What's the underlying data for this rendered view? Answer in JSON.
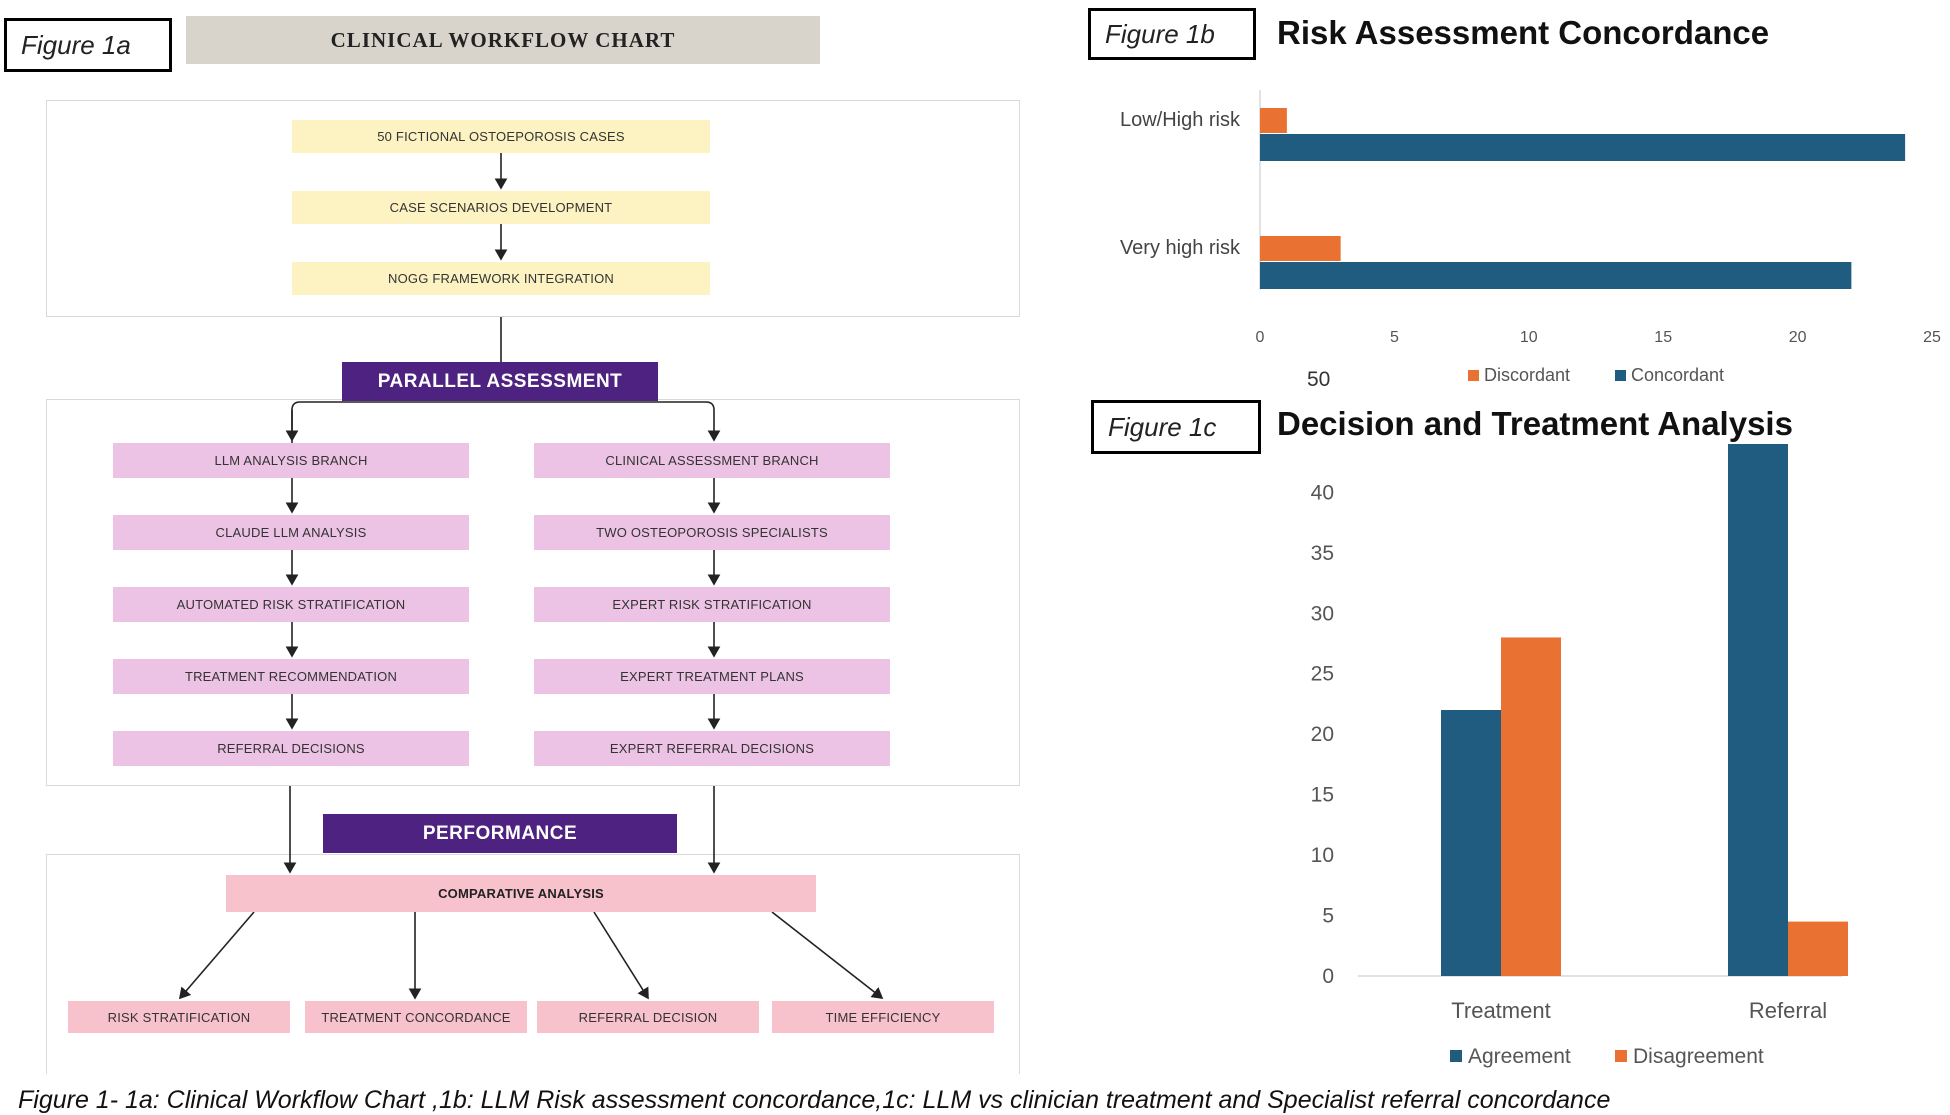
{
  "fig1a": {
    "label": "Figure 1a",
    "title": "CLINICAL WORKFLOW CHART",
    "top_nodes": [
      "50 FICTIONAL OSTOEPOROSIS CASES",
      "CASE SCENARIOS DEVELOPMENT",
      "NOGG FRAMEWORK INTEGRATION"
    ],
    "parallel_header": "PARALLEL ASSESSMENT",
    "llm_branch": [
      "LLM ANALYSIS BRANCH",
      "CLAUDE LLM ANALYSIS",
      "AUTOMATED RISK STRATIFICATION",
      "TREATMENT RECOMMENDATION",
      "REFERRAL DECISIONS"
    ],
    "clinical_branch": [
      "CLINICAL ASSESSMENT BRANCH",
      "TWO OSTEOPOROSIS SPECIALISTS",
      "EXPERT RISK STRATIFICATION",
      "EXPERT TREATMENT PLANS",
      "EXPERT REFERRAL DECISIONS"
    ],
    "performance_header": "PERFORMANCE",
    "comparative": "COMPARATIVE ANALYSIS",
    "outcomes": [
      "RISK STRATIFICATION",
      "TREATMENT CONCORDANCE",
      "REFERRAL DECISION",
      "TIME EFFICIENCY"
    ]
  },
  "fig1b": {
    "label": "Figure 1b",
    "stray_label": "50"
  },
  "fig1c": {
    "label": "Figure 1c"
  },
  "caption": "Figure 1- 1a: Clinical Workflow Chart ,1b: LLM Risk assessment concordance,1c: LLM vs clinician treatment and Specialist referral concordance",
  "colors": {
    "blue": "#1f5c7f",
    "orange": "#e97132",
    "purple": "#4d2280",
    "axis": "#d9d9d9"
  },
  "chart_data": [
    {
      "type": "bar",
      "orientation": "horizontal",
      "title": "Risk Assessment Concordance",
      "categories": [
        "Low/High risk",
        "Very high risk"
      ],
      "series": [
        {
          "name": "Discordant",
          "values": [
            1,
            3
          ]
        },
        {
          "name": "Concordant",
          "values": [
            24,
            22
          ]
        }
      ],
      "xlim": [
        0,
        25
      ],
      "xticks": [
        0,
        5,
        10,
        15,
        20,
        25
      ],
      "legend": "bottom",
      "grid": false
    },
    {
      "type": "bar",
      "orientation": "vertical",
      "title": "Decision and Treatment Analysis",
      "categories": [
        "Treatment",
        "Referral"
      ],
      "series": [
        {
          "name": "Agreement",
          "values": [
            22,
            44
          ]
        },
        {
          "name": "Disagreement",
          "values": [
            28,
            4.5
          ]
        }
      ],
      "ylim": [
        0,
        44
      ],
      "yticks": [
        0,
        5,
        10,
        15,
        20,
        25,
        30,
        35,
        40
      ],
      "legend": "bottom",
      "grid": false
    }
  ]
}
